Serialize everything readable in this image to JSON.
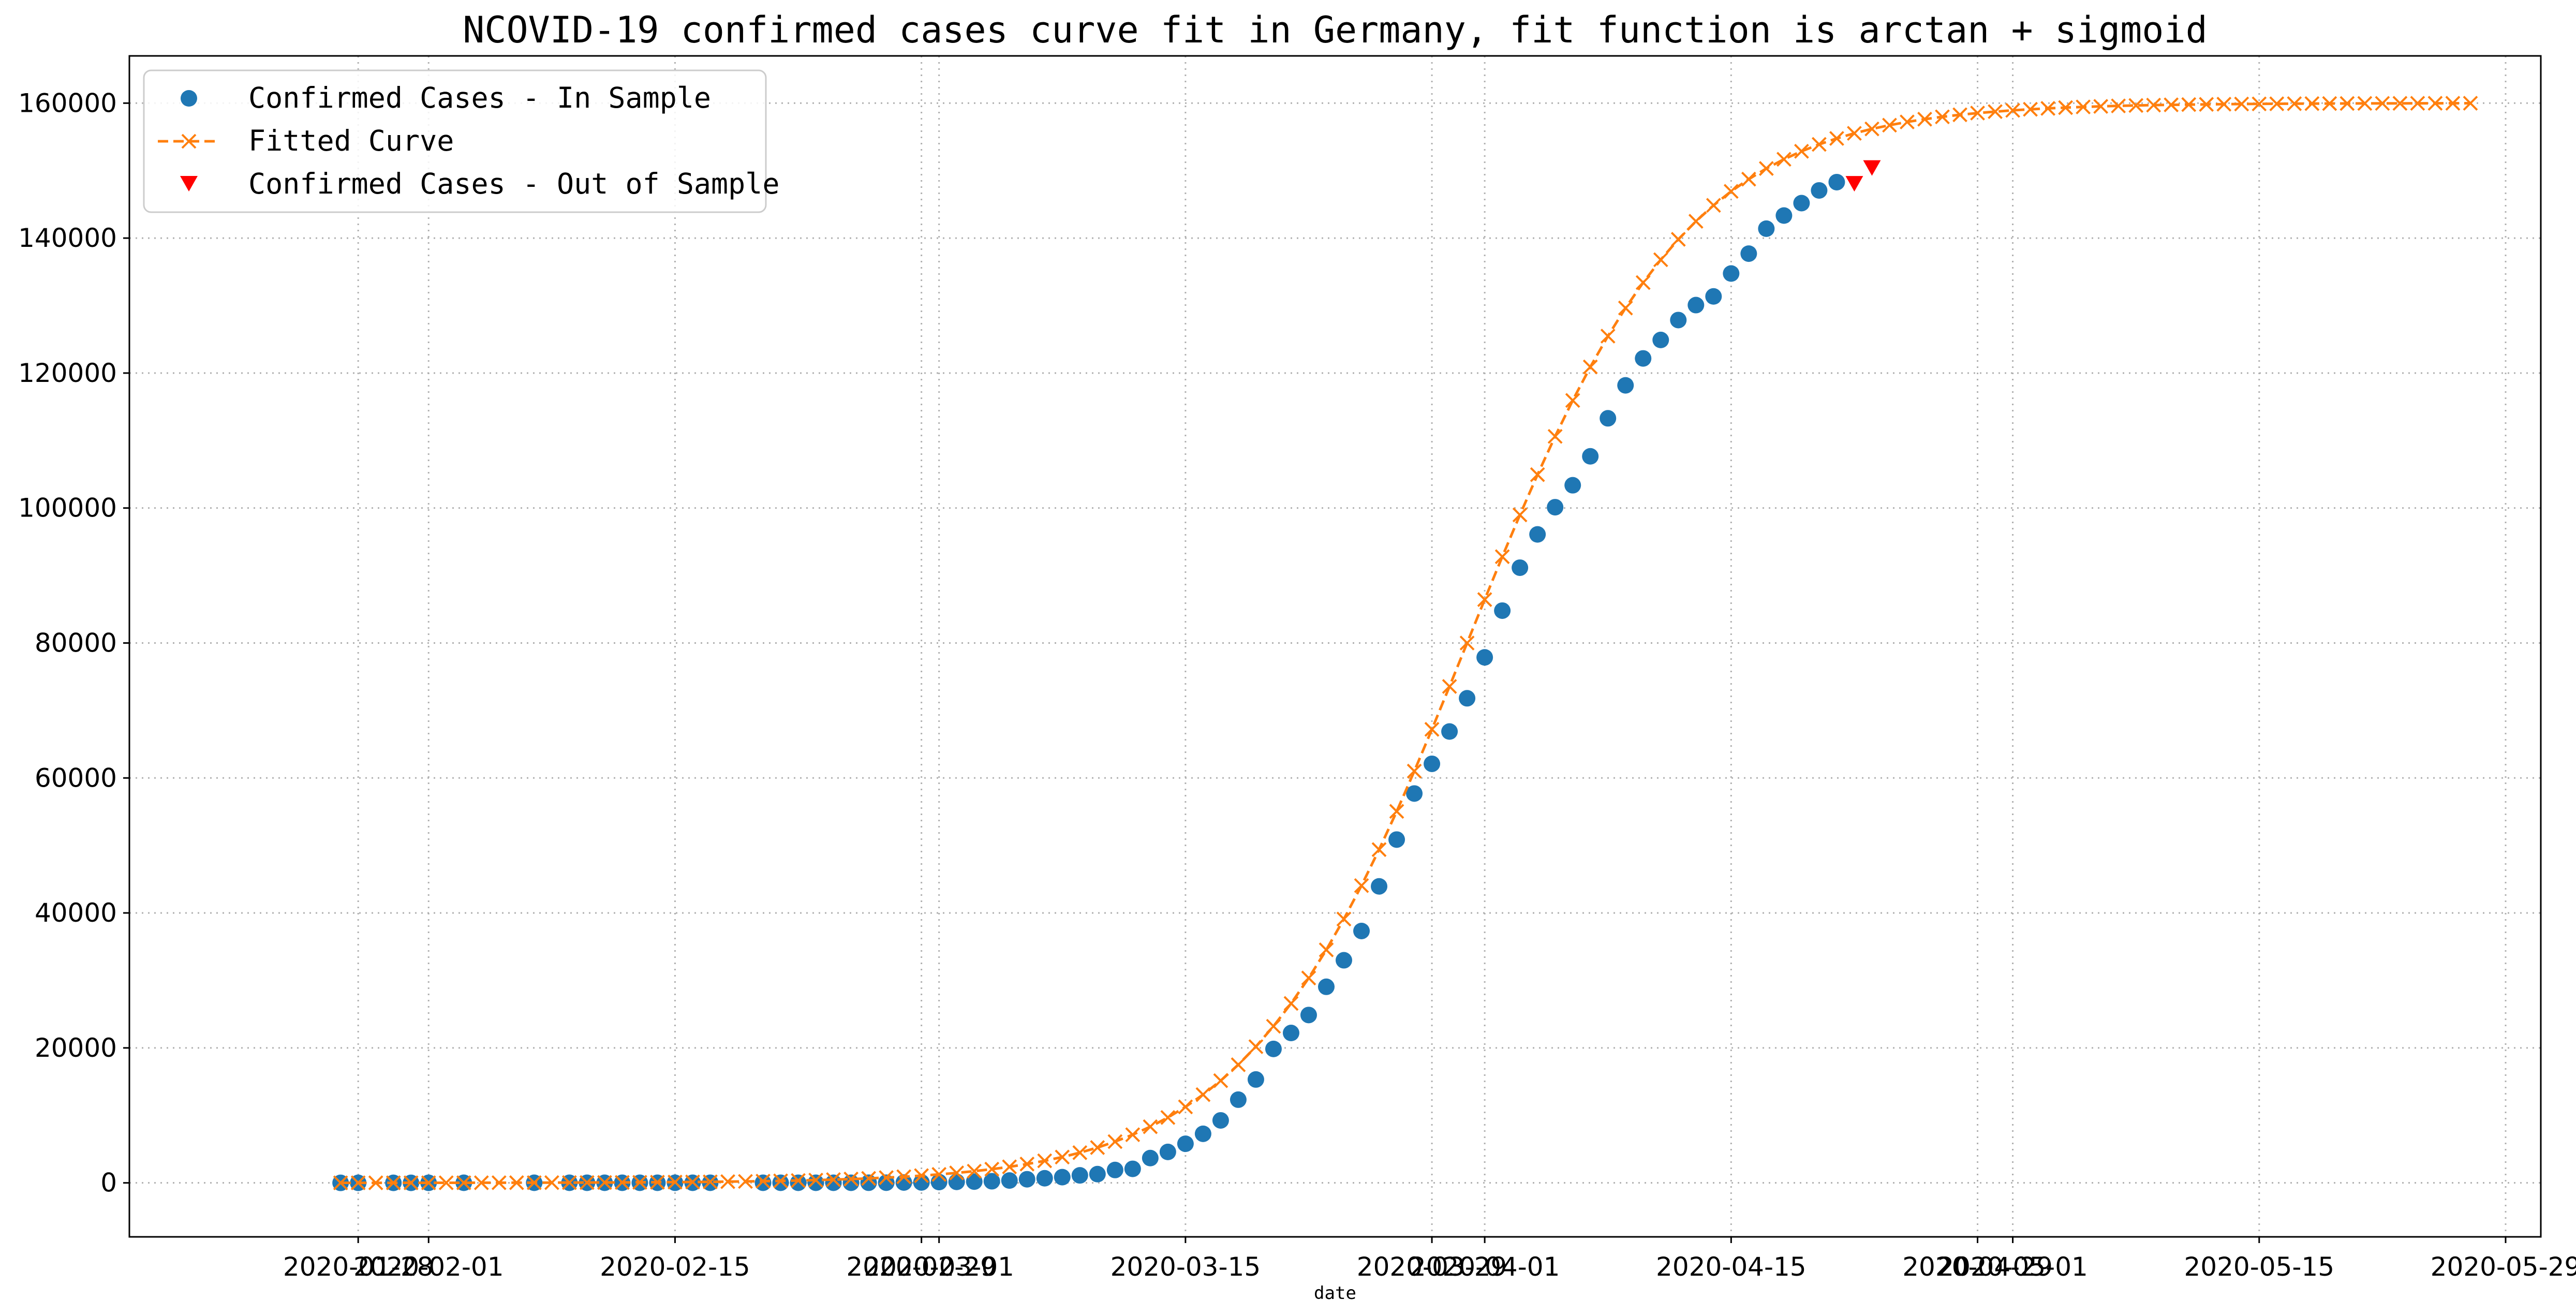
{
  "chart_data": {
    "type": "line",
    "title": "NCOVID-19 confirmed cases curve fit in Germany, fit function is arctan + sigmoid",
    "xlabel": "date",
    "ylabel": "",
    "x_axis_type": "date",
    "xlim": [
      "2020-01-15",
      "2020-05-31"
    ],
    "ylim": [
      -8000,
      167000
    ],
    "yticks": [
      0,
      20000,
      40000,
      60000,
      80000,
      100000,
      120000,
      140000,
      160000
    ],
    "xtick_labels": [
      "2020-01-28",
      "2020-02-01",
      "2020-02-15",
      "2020-02-29",
      "2020-03-01",
      "2020-03-15",
      "2020-03-29",
      "2020-04-01",
      "2020-04-15",
      "2020-04-29",
      "2020-05-01",
      "2020-05-15",
      "2020-05-29"
    ],
    "grid": true,
    "legend": {
      "position": "top-left",
      "entries": [
        {
          "label": "Confirmed Cases - In Sample",
          "series": "in_sample"
        },
        {
          "label": "Fitted Curve",
          "series": "fitted"
        },
        {
          "label": "Confirmed Cases - Out of Sample",
          "series": "out_of_sample"
        }
      ]
    },
    "colors": {
      "in_sample": "#1f77b4",
      "fitted": "#ff7f0e",
      "out_of_sample": "#ff0000",
      "grid": "#b0b0b0"
    },
    "series": [
      {
        "name": "Confirmed Cases - In Sample",
        "key": "in_sample",
        "marker": "circle",
        "points": [
          [
            "2020-01-27",
            1
          ],
          [
            "2020-01-28",
            4
          ],
          [
            "2020-01-30",
            4
          ],
          [
            "2020-01-31",
            5
          ],
          [
            "2020-02-01",
            8
          ],
          [
            "2020-02-03",
            12
          ],
          [
            "2020-02-07",
            13
          ],
          [
            "2020-02-09",
            14
          ],
          [
            "2020-02-10",
            14
          ],
          [
            "2020-02-11",
            16
          ],
          [
            "2020-02-12",
            16
          ],
          [
            "2020-02-13",
            16
          ],
          [
            "2020-02-14",
            16
          ],
          [
            "2020-02-15",
            16
          ],
          [
            "2020-02-16",
            16
          ],
          [
            "2020-02-17",
            16
          ],
          [
            "2020-02-20",
            16
          ],
          [
            "2020-02-21",
            16
          ],
          [
            "2020-02-22",
            16
          ],
          [
            "2020-02-23",
            16
          ],
          [
            "2020-02-24",
            16
          ],
          [
            "2020-02-25",
            18
          ],
          [
            "2020-02-26",
            21
          ],
          [
            "2020-02-27",
            26
          ],
          [
            "2020-02-28",
            53
          ],
          [
            "2020-02-29",
            66
          ],
          [
            "2020-03-01",
            117
          ],
          [
            "2020-03-02",
            150
          ],
          [
            "2020-03-03",
            188
          ],
          [
            "2020-03-04",
            240
          ],
          [
            "2020-03-05",
            349
          ],
          [
            "2020-03-06",
            534
          ],
          [
            "2020-03-07",
            684
          ],
          [
            "2020-03-08",
            847
          ],
          [
            "2020-03-09",
            1112
          ],
          [
            "2020-03-10",
            1296
          ],
          [
            "2020-03-11",
            1908
          ],
          [
            "2020-03-12",
            2078
          ],
          [
            "2020-03-13",
            3675
          ],
          [
            "2020-03-14",
            4585
          ],
          [
            "2020-03-15",
            5795
          ],
          [
            "2020-03-16",
            7272
          ],
          [
            "2020-03-17",
            9257
          ],
          [
            "2020-03-18",
            12327
          ],
          [
            "2020-03-19",
            15320
          ],
          [
            "2020-03-20",
            19848
          ],
          [
            "2020-03-21",
            22213
          ],
          [
            "2020-03-22",
            24873
          ],
          [
            "2020-03-23",
            29056
          ],
          [
            "2020-03-24",
            32986
          ],
          [
            "2020-03-25",
            37323
          ],
          [
            "2020-03-26",
            43938
          ],
          [
            "2020-03-27",
            50871
          ],
          [
            "2020-03-28",
            57695
          ],
          [
            "2020-03-29",
            62095
          ],
          [
            "2020-03-30",
            66885
          ],
          [
            "2020-03-31",
            71808
          ],
          [
            "2020-04-01",
            77872
          ],
          [
            "2020-04-02",
            84794
          ],
          [
            "2020-04-03",
            91159
          ],
          [
            "2020-04-04",
            96092
          ],
          [
            "2020-04-05",
            100123
          ],
          [
            "2020-04-06",
            103374
          ],
          [
            "2020-04-07",
            107663
          ],
          [
            "2020-04-08",
            113296
          ],
          [
            "2020-04-09",
            118181
          ],
          [
            "2020-04-10",
            122171
          ],
          [
            "2020-04-11",
            124908
          ],
          [
            "2020-04-12",
            127854
          ],
          [
            "2020-04-13",
            130072
          ],
          [
            "2020-04-14",
            131359
          ],
          [
            "2020-04-15",
            134753
          ],
          [
            "2020-04-16",
            137698
          ],
          [
            "2020-04-17",
            141397
          ],
          [
            "2020-04-18",
            143342
          ],
          [
            "2020-04-19",
            145184
          ],
          [
            "2020-04-20",
            147065
          ],
          [
            "2020-04-21",
            148291
          ]
        ]
      },
      {
        "name": "Fitted Curve",
        "key": "fitted",
        "marker": "x",
        "linestyle": "dashed",
        "start_date": "2020-01-27",
        "end_date": "2020-05-27",
        "step_days": 1,
        "curve": {
          "L": 160000,
          "midpoint": "2020-03-31",
          "scale_days": 6.2
        }
      },
      {
        "name": "Confirmed Cases - Out of Sample",
        "key": "out_of_sample",
        "marker": "triangle-down",
        "points": [
          [
            "2020-04-22",
            148046
          ],
          [
            "2020-04-23",
            150383
          ]
        ]
      }
    ]
  }
}
